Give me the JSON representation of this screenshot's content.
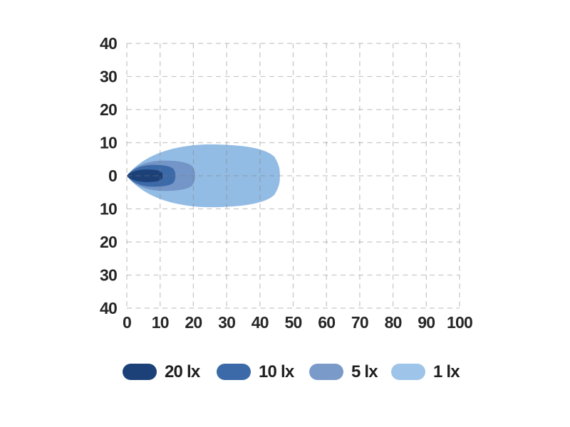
{
  "page": {
    "background": "#ffffff",
    "text_color": "#262626"
  },
  "chart_data": {
    "type": "area",
    "subtype": "isolux-beam-pattern-contours",
    "title": "",
    "xlabel": "",
    "ylabel": "",
    "x_axis": {
      "range": [
        0,
        100
      ],
      "tick_step": 10,
      "tick_labels": [
        "0",
        "10",
        "20",
        "30",
        "40",
        "50",
        "60",
        "70",
        "80",
        "90",
        "100"
      ]
    },
    "y_axis": {
      "range": [
        -40,
        40
      ],
      "tick_step": 10,
      "tick_values": [
        40,
        30,
        20,
        10,
        0,
        -10,
        -20,
        -30,
        -40
      ],
      "tick_labels": [
        "40",
        "30",
        "20",
        "10",
        "0",
        "10",
        "20",
        "30",
        "40"
      ]
    },
    "grid": {
      "visible": true,
      "style": "dashed",
      "color": "#c9c9c9"
    },
    "series": [
      {
        "name": "1 lx",
        "value_lx": 1,
        "color": "#93bce4",
        "origin": [
          0,
          0
        ],
        "reach": 46.0,
        "half_width": 9.5
      },
      {
        "name": "5 lx",
        "value_lx": 5,
        "color": "#7495c7",
        "origin": [
          0,
          0
        ],
        "reach": 20.5,
        "half_width": 4.6
      },
      {
        "name": "10 lx",
        "value_lx": 10,
        "color": "#3c6aa9",
        "origin": [
          0,
          0
        ],
        "reach": 14.6,
        "half_width": 3.3
      },
      {
        "name": "20 lx",
        "value_lx": 20,
        "color": "#1c4178",
        "origin": [
          0,
          0
        ],
        "reach": 10.8,
        "half_width": 1.9
      }
    ],
    "legend": {
      "position": "bottom",
      "items": [
        {
          "label": "20 lx",
          "color": "#1c4178"
        },
        {
          "label": "10 lx",
          "color": "#3c6aa9"
        },
        {
          "label": "5 lx",
          "color": "#7a9bc9"
        },
        {
          "label": "1 lx",
          "color": "#9fc4e9"
        }
      ]
    }
  }
}
